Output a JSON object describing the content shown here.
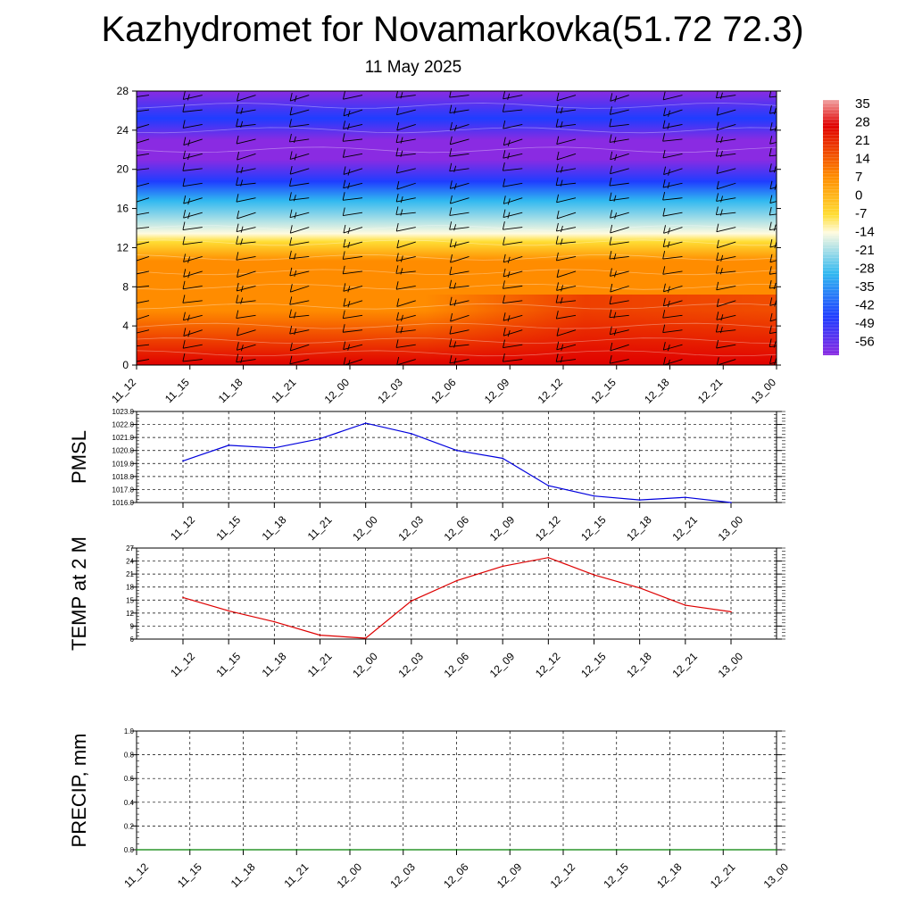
{
  "title": "Kazhydromet for Novamarkovka(51.72 72.3)",
  "subtitle": "11 May 2025",
  "time_labels": [
    "11_12",
    "11_15",
    "11_18",
    "11_21",
    "12_00",
    "12_03",
    "12_06",
    "12_09",
    "12_12",
    "12_15",
    "12_18",
    "12_21",
    "13_00"
  ],
  "colorbar": {
    "labels": [
      "35",
      "28",
      "21",
      "14",
      "7",
      "0",
      "-7",
      "-14",
      "-21",
      "-28",
      "-35",
      "-42",
      "-49",
      "-56"
    ],
    "colors": {
      "top": "#f0a0a0",
      "red": "#e00000",
      "orange": "#ff8c00",
      "yellow": "#ffdd33",
      "cream": "#fffbe0",
      "cyan": "#30b8f0",
      "blue": "#1f3dff",
      "purple": "#8a2be2"
    }
  },
  "chart_data": [
    {
      "type": "heatmap",
      "name": "vertical-cross-section",
      "x": [
        "11_12",
        "11_15",
        "11_18",
        "11_21",
        "12_00",
        "12_03",
        "12_06",
        "12_09",
        "12_12",
        "12_15",
        "12_18",
        "12_21",
        "13_00"
      ],
      "ylim": [
        0,
        28
      ],
      "yticks": [
        0,
        4,
        8,
        12,
        16,
        20,
        24,
        28
      ],
      "value_range": [
        -56,
        35
      ],
      "layers": [
        {
          "y": 0,
          "values": [
            18,
            16,
            15,
            13,
            12,
            14,
            17,
            20,
            24,
            25,
            24,
            23,
            22
          ]
        },
        {
          "y": 2,
          "values": [
            12,
            11,
            11,
            10,
            10,
            11,
            12,
            14,
            16,
            17,
            17,
            16,
            15
          ]
        },
        {
          "y": 4,
          "values": [
            8,
            8,
            8,
            7,
            7,
            8,
            9,
            10,
            11,
            12,
            12,
            11,
            11
          ]
        },
        {
          "y": 6,
          "values": [
            5,
            5,
            5,
            5,
            5,
            5,
            6,
            6,
            7,
            7,
            7,
            7,
            7
          ]
        },
        {
          "y": 8,
          "values": [
            3,
            3,
            3,
            3,
            3,
            3,
            3,
            3,
            3,
            3,
            3,
            3,
            3
          ]
        },
        {
          "y": 10,
          "values": [
            0,
            0,
            0,
            0,
            0,
            0,
            0,
            0,
            0,
            0,
            0,
            0,
            0
          ]
        },
        {
          "y": 12,
          "values": [
            -8,
            -8,
            -8,
            -8,
            -8,
            -8,
            -8,
            -8,
            -8,
            -8,
            -8,
            -8,
            -8
          ]
        },
        {
          "y": 13,
          "values": [
            -14,
            -14,
            -14,
            -14,
            -14,
            -14,
            -14,
            -14,
            -14,
            -14,
            -14,
            -14,
            -14
          ]
        },
        {
          "y": 15,
          "values": [
            -28,
            -28,
            -28,
            -28,
            -28,
            -28,
            -28,
            -28,
            -28,
            -28,
            -28,
            -28,
            -28
          ]
        },
        {
          "y": 17,
          "values": [
            -42,
            -42,
            -42,
            -42,
            -42,
            -42,
            -42,
            -42,
            -42,
            -42,
            -42,
            -42,
            -42
          ]
        },
        {
          "y": 18.5,
          "values": [
            -50,
            -50,
            -50,
            -50,
            -50,
            -50,
            -50,
            -50,
            -50,
            -50,
            -50,
            -50,
            -50
          ]
        },
        {
          "y": 20,
          "values": [
            -56,
            -56,
            -56,
            -56,
            -56,
            -56,
            -56,
            -56,
            -56,
            -56,
            -56,
            -56,
            -56
          ]
        },
        {
          "y": 23,
          "values": [
            -52,
            -52,
            -52,
            -52,
            -52,
            -52,
            -52,
            -52,
            -52,
            -52,
            -52,
            -52,
            -52
          ]
        },
        {
          "y": 28,
          "values": [
            -56,
            -56,
            -56,
            -56,
            -56,
            -56,
            -56,
            -56,
            -56,
            -56,
            -56,
            -56,
            -56
          ]
        }
      ],
      "wind_barbs": true
    },
    {
      "type": "line",
      "name": "PMSL",
      "ylabel": "PMSL",
      "categories": [
        "11_12",
        "11_15",
        "11_18",
        "11_21",
        "12_00",
        "12_03",
        "12_06",
        "12_09",
        "12_12",
        "12_15",
        "12_18",
        "12_21",
        "13_00"
      ],
      "series": [
        {
          "values": [
            1019.2,
            1020.4,
            1020.2,
            1020.9,
            1022.1,
            1021.3,
            1020.0,
            1019.4,
            1017.3,
            1016.5,
            1016.2,
            1016.4,
            1016.0
          ]
        }
      ],
      "ylim": [
        1016.0,
        1023.0
      ],
      "yticks": [
        "1016.0",
        "1017.0",
        "1018.0",
        "1019.0",
        "1020.0",
        "1021.0",
        "1022.0",
        "1023.0"
      ],
      "color": "#0000dd",
      "grid": true
    },
    {
      "type": "line",
      "name": "TEMP",
      "ylabel": "TEMP at 2 M",
      "categories": [
        "11_12",
        "11_15",
        "11_18",
        "11_21",
        "12_00",
        "12_03",
        "12_06",
        "12_09",
        "12_12",
        "12_15",
        "12_18",
        "12_21",
        "13_00"
      ],
      "series": [
        {
          "values": [
            15.6,
            12.5,
            10.0,
            6.9,
            6.2,
            14.8,
            19.5,
            22.8,
            24.8,
            20.8,
            17.8,
            13.8,
            12.3
          ]
        }
      ],
      "ylim": [
        6,
        27
      ],
      "yticks": [
        "6",
        "9",
        "12",
        "15",
        "18",
        "21",
        "24",
        "27"
      ],
      "color": "#dd0000",
      "grid": true
    },
    {
      "type": "line",
      "name": "PRECIP",
      "ylabel": "PRECIP, mm",
      "categories": [
        "11_12",
        "11_15",
        "11_18",
        "11_21",
        "12_00",
        "12_03",
        "12_06",
        "12_09",
        "12_12",
        "12_15",
        "12_18",
        "12_21",
        "13_00"
      ],
      "series": [
        {
          "values": [
            0,
            0,
            0,
            0,
            0,
            0,
            0,
            0,
            0,
            0,
            0,
            0,
            0
          ]
        }
      ],
      "ylim": [
        0.0,
        1.0
      ],
      "yticks": [
        "0.0",
        "0.2",
        "0.4",
        "0.6",
        "0.8",
        "1.0"
      ],
      "color": "#008000",
      "grid": true
    }
  ]
}
